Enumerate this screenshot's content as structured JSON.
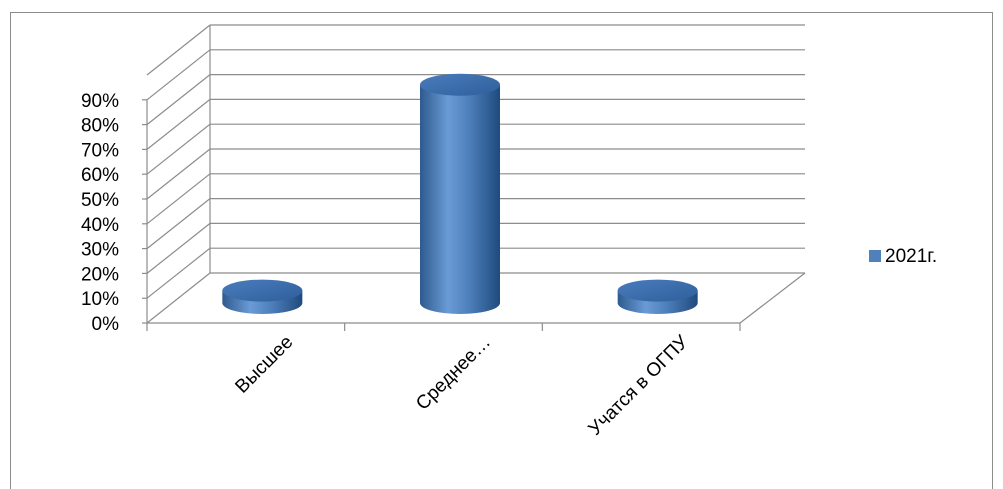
{
  "chart_data": {
    "type": "bar",
    "style": "3d-cylinder",
    "categories": [
      "Высшее",
      "Среднее…",
      "Учатся в ОГПУ"
    ],
    "series": [
      {
        "name": "2021г.",
        "values": [
          5,
          88,
          5
        ],
        "color": "#4f81bd"
      }
    ],
    "y_ticks": [
      "0%",
      "10%",
      "20%",
      "30%",
      "40%",
      "50%",
      "60%",
      "70%",
      "80%",
      "90%"
    ],
    "ylim": [
      0,
      90
    ],
    "grid": true,
    "legend_position": "right"
  }
}
